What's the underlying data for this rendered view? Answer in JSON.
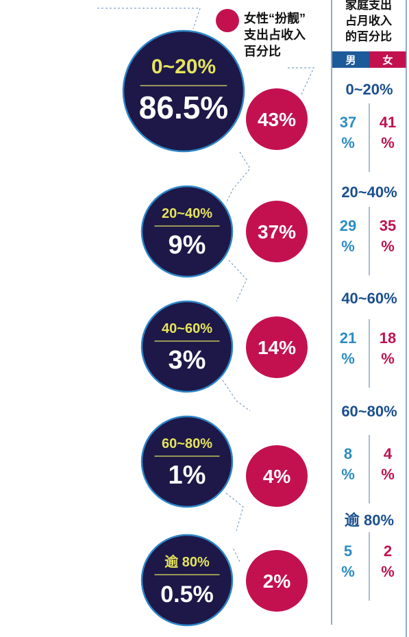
{
  "colors": {
    "navy": "#1d1848",
    "navy_ring": "#2f86c8",
    "magenta": "#c3114f",
    "yellow": "#e6e45c",
    "blue_text": "#1a4f8e",
    "male_blue": "#2b8cc4",
    "female_red": "#c0124f",
    "header_male_bg": "#1d5a9a",
    "header_female_bg": "#c3114f"
  },
  "legend": {
    "label_line1": "女性“扮靓”",
    "label_line2": "支出占收入",
    "label_line3": "百分比"
  },
  "table_header": {
    "line1": "家庭支出",
    "line2": "占月收入",
    "line3": "的百分比",
    "male": "男",
    "female": "女"
  },
  "chart_data": {
    "type": "table",
    "rows": [
      {
        "range": "0~20%",
        "share": "86.5%",
        "share_value": 86.5,
        "female_beauty": "43%",
        "female_beauty_value": 43,
        "male": "37%",
        "male_value": 37,
        "female": "41%",
        "female_value": 41
      },
      {
        "range": "20~40%",
        "share": "9%",
        "share_value": 9,
        "female_beauty": "37%",
        "female_beauty_value": 37,
        "male": "29%",
        "male_value": 29,
        "female": "35%",
        "female_value": 35
      },
      {
        "range": "40~60%",
        "share": "3%",
        "share_value": 3,
        "female_beauty": "14%",
        "female_beauty_value": 14,
        "male": "21%",
        "male_value": 21,
        "female": "18%",
        "female_value": 18
      },
      {
        "range": "60~80%",
        "share": "1%",
        "share_value": 1,
        "female_beauty": "4%",
        "female_beauty_value": 4,
        "male": "8%",
        "male_value": 8,
        "female": "4%",
        "female_value": 4
      },
      {
        "range": "逾 80%",
        "share": "0.5%",
        "share_value": 0.5,
        "female_beauty": "2%",
        "female_beauty_value": 2,
        "male": "5%",
        "male_value": 5,
        "female": "2%",
        "female_value": 2
      }
    ]
  }
}
